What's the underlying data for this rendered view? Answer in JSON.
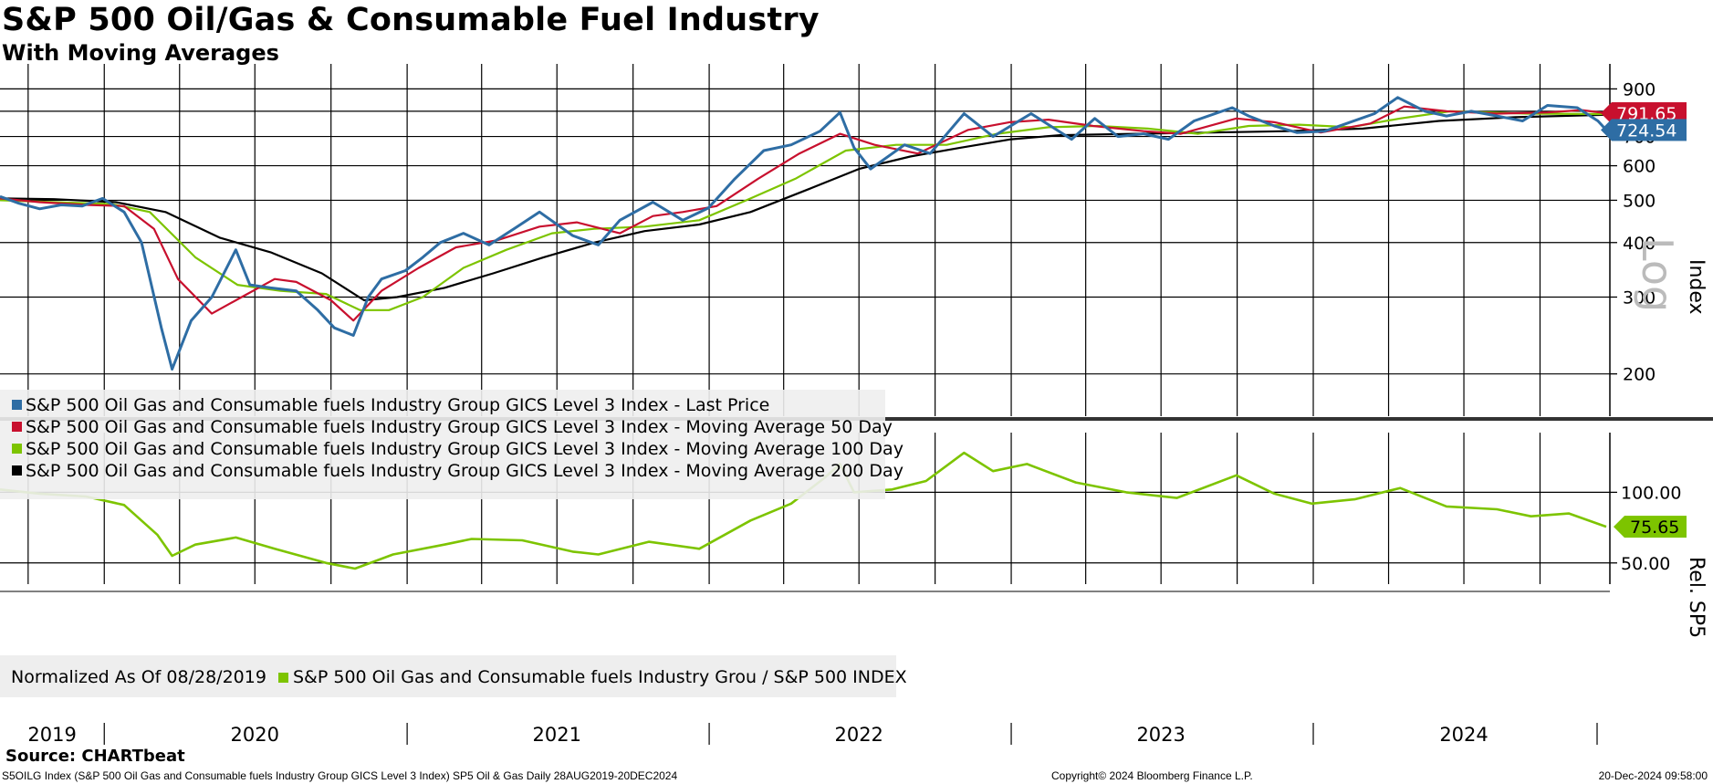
{
  "header": {
    "title": "S&P 500 Oil/Gas & Consumable Fuel Industry",
    "subtitle": "With Moving Averages"
  },
  "source": "Source: CHARTbeat",
  "footer": {
    "left": "S5OILG Index (S&P 500 Oil Gas and Consumable fuels Industry Group GICS Level 3 Index) SP5 Oil & Gas  Daily 28AUG2019-20DEC2024",
    "middle": "Copyright© 2024 Bloomberg Finance L.P.",
    "right": "20-Dec-2024 09:58:00"
  },
  "colors": {
    "last_price": "#2e6da4",
    "ma50": "#c8102e",
    "ma100": "#7dc400",
    "ma200": "#000000",
    "relative": "#7dc400",
    "grid": "#000000"
  },
  "chart_data": [
    {
      "type": "line",
      "panel": "price",
      "y_scale": "log",
      "y_scale_label": "Log",
      "ylabel": "Index",
      "ylim": [
        160,
        960
      ],
      "yticks": [
        200,
        300,
        400,
        500,
        600,
        700,
        800,
        900
      ],
      "x_range": [
        "2019-08-28",
        "2024-12-20"
      ],
      "x_tick_labels": [
        "2019",
        "2020",
        "2021",
        "2022",
        "2023",
        "2024"
      ],
      "grid": true,
      "legend_position": "bottom-left",
      "last_value_labels": [
        {
          "series": "Moving Average 50 Day",
          "value": "791.65"
        },
        {
          "series": "Last Price",
          "value": "724.54"
        }
      ],
      "series": [
        {
          "name": "S&P 500 Oil Gas and Consumable fuels Industry Group GICS Level 3 Index - Last Price",
          "points": [
            [
              "2019-08-28",
              510
            ],
            [
              "2019-09-20",
              492
            ],
            [
              "2019-10-15",
              478
            ],
            [
              "2019-11-10",
              488
            ],
            [
              "2019-12-05",
              485
            ],
            [
              "2019-12-30",
              505
            ],
            [
              "2020-01-25",
              470
            ],
            [
              "2020-02-15",
              400
            ],
            [
              "2020-03-10",
              255
            ],
            [
              "2020-03-23",
              205
            ],
            [
              "2020-04-15",
              265
            ],
            [
              "2020-05-10",
              300
            ],
            [
              "2020-06-08",
              385
            ],
            [
              "2020-06-25",
              320
            ],
            [
              "2020-07-20",
              315
            ],
            [
              "2020-08-20",
              310
            ],
            [
              "2020-09-15",
              280
            ],
            [
              "2020-10-05",
              255
            ],
            [
              "2020-10-28",
              245
            ],
            [
              "2020-11-15",
              300
            ],
            [
              "2020-12-01",
              330
            ],
            [
              "2020-12-30",
              345
            ],
            [
              "2021-01-20",
              370
            ],
            [
              "2021-02-10",
              400
            ],
            [
              "2021-03-10",
              420
            ],
            [
              "2021-04-10",
              395
            ],
            [
              "2021-05-10",
              430
            ],
            [
              "2021-06-10",
              470
            ],
            [
              "2021-07-20",
              415
            ],
            [
              "2021-08-20",
              395
            ],
            [
              "2021-09-15",
              450
            ],
            [
              "2021-10-25",
              495
            ],
            [
              "2021-11-30",
              450
            ],
            [
              "2021-12-31",
              480
            ],
            [
              "2022-02-01",
              560
            ],
            [
              "2022-03-08",
              650
            ],
            [
              "2022-04-10",
              670
            ],
            [
              "2022-05-15",
              720
            ],
            [
              "2022-06-08",
              795
            ],
            [
              "2022-06-25",
              660
            ],
            [
              "2022-07-15",
              590
            ],
            [
              "2022-08-25",
              670
            ],
            [
              "2022-09-25",
              640
            ],
            [
              "2022-11-05",
              790
            ],
            [
              "2022-12-10",
              700
            ],
            [
              "2023-01-25",
              790
            ],
            [
              "2023-03-15",
              690
            ],
            [
              "2023-04-12",
              770
            ],
            [
              "2023-05-10",
              700
            ],
            [
              "2023-06-10",
              710
            ],
            [
              "2023-07-10",
              690
            ],
            [
              "2023-08-10",
              760
            ],
            [
              "2023-09-25",
              815
            ],
            [
              "2023-10-15",
              780
            ],
            [
              "2023-11-15",
              740
            ],
            [
              "2023-12-12",
              715
            ],
            [
              "2024-01-15",
              720
            ],
            [
              "2024-03-15",
              790
            ],
            [
              "2024-04-12",
              860
            ],
            [
              "2024-05-15",
              800
            ],
            [
              "2024-06-10",
              780
            ],
            [
              "2024-07-10",
              800
            ],
            [
              "2024-08-10",
              780
            ],
            [
              "2024-09-10",
              760
            ],
            [
              "2024-10-10",
              825
            ],
            [
              "2024-11-15",
              815
            ],
            [
              "2024-12-10",
              760
            ],
            [
              "2024-12-20",
              724.54
            ]
          ]
        },
        {
          "name": "S&P 500 Oil Gas and Consumable fuels Industry Group GICS Level 3 Index - Moving Average 50 Day",
          "points": [
            [
              "2019-08-28",
              505
            ],
            [
              "2019-10-15",
              495
            ],
            [
              "2019-12-10",
              488
            ],
            [
              "2020-01-25",
              485
            ],
            [
              "2020-03-01",
              430
            ],
            [
              "2020-03-30",
              330
            ],
            [
              "2020-05-10",
              275
            ],
            [
              "2020-06-15",
              300
            ],
            [
              "2020-07-25",
              330
            ],
            [
              "2020-08-20",
              325
            ],
            [
              "2020-10-01",
              295
            ],
            [
              "2020-10-28",
              265
            ],
            [
              "2020-12-01",
              310
            ],
            [
              "2021-01-15",
              350
            ],
            [
              "2021-03-01",
              390
            ],
            [
              "2021-04-20",
              405
            ],
            [
              "2021-06-10",
              435
            ],
            [
              "2021-07-25",
              445
            ],
            [
              "2021-09-15",
              420
            ],
            [
              "2021-10-25",
              460
            ],
            [
              "2021-11-30",
              470
            ],
            [
              "2022-01-10",
              485
            ],
            [
              "2022-03-01",
              560
            ],
            [
              "2022-04-20",
              640
            ],
            [
              "2022-06-08",
              710
            ],
            [
              "2022-07-20",
              670
            ],
            [
              "2022-09-10",
              640
            ],
            [
              "2022-11-10",
              725
            ],
            [
              "2022-12-30",
              755
            ],
            [
              "2023-02-15",
              765
            ],
            [
              "2023-04-10",
              740
            ],
            [
              "2023-06-10",
              720
            ],
            [
              "2023-07-25",
              710
            ],
            [
              "2023-09-30",
              770
            ],
            [
              "2023-11-15",
              755
            ],
            [
              "2024-01-10",
              715
            ],
            [
              "2024-03-10",
              750
            ],
            [
              "2024-04-20",
              820
            ],
            [
              "2024-06-10",
              800
            ],
            [
              "2024-08-10",
              790
            ],
            [
              "2024-10-10",
              795
            ],
            [
              "2024-11-20",
              805
            ],
            [
              "2024-12-20",
              791.65
            ]
          ]
        },
        {
          "name": "S&P 500 Oil Gas and Consumable fuels Industry Group GICS Level 3 Index - Moving Average 100 Day",
          "points": [
            [
              "2019-08-28",
              500
            ],
            [
              "2019-11-01",
              495
            ],
            [
              "2020-01-10",
              490
            ],
            [
              "2020-02-25",
              470
            ],
            [
              "2020-04-20",
              370
            ],
            [
              "2020-06-10",
              320
            ],
            [
              "2020-08-01",
              310
            ],
            [
              "2020-09-25",
              305
            ],
            [
              "2020-11-05",
              280
            ],
            [
              "2020-12-10",
              280
            ],
            [
              "2021-01-20",
              300
            ],
            [
              "2021-03-10",
              350
            ],
            [
              "2021-05-01",
              385
            ],
            [
              "2021-06-25",
              420
            ],
            [
              "2021-08-15",
              430
            ],
            [
              "2021-10-15",
              435
            ],
            [
              "2021-12-20",
              450
            ],
            [
              "2022-02-15",
              500
            ],
            [
              "2022-04-15",
              560
            ],
            [
              "2022-06-15",
              650
            ],
            [
              "2022-08-15",
              670
            ],
            [
              "2022-10-15",
              670
            ],
            [
              "2022-12-15",
              710
            ],
            [
              "2023-02-15",
              735
            ],
            [
              "2023-04-15",
              740
            ],
            [
              "2023-06-15",
              730
            ],
            [
              "2023-08-15",
              710
            ],
            [
              "2023-10-15",
              740
            ],
            [
              "2023-12-15",
              745
            ],
            [
              "2024-02-15",
              735
            ],
            [
              "2024-04-15",
              770
            ],
            [
              "2024-06-15",
              800
            ],
            [
              "2024-09-15",
              790
            ],
            [
              "2024-12-20",
              788
            ]
          ]
        },
        {
          "name": "S&P 500 Oil Gas and Consumable fuels Industry Group GICS Level 3 Index - Moving Average 200 Day",
          "points": [
            [
              "2019-08-28",
              505
            ],
            [
              "2019-11-01",
              503
            ],
            [
              "2020-01-15",
              495
            ],
            [
              "2020-03-15",
              470
            ],
            [
              "2020-05-20",
              410
            ],
            [
              "2020-07-20",
              380
            ],
            [
              "2020-09-20",
              340
            ],
            [
              "2020-11-10",
              295
            ],
            [
              "2020-12-20",
              300
            ],
            [
              "2021-02-15",
              315
            ],
            [
              "2021-04-15",
              340
            ],
            [
              "2021-06-15",
              370
            ],
            [
              "2021-08-15",
              400
            ],
            [
              "2021-10-15",
              425
            ],
            [
              "2021-12-20",
              440
            ],
            [
              "2022-02-20",
              470
            ],
            [
              "2022-05-01",
              530
            ],
            [
              "2022-07-01",
              590
            ],
            [
              "2022-09-01",
              630
            ],
            [
              "2022-11-01",
              660
            ],
            [
              "2023-01-01",
              690
            ],
            [
              "2023-03-01",
              705
            ],
            [
              "2023-06-01",
              710
            ],
            [
              "2023-09-01",
              715
            ],
            [
              "2023-12-01",
              720
            ],
            [
              "2024-03-01",
              730
            ],
            [
              "2024-06-01",
              760
            ],
            [
              "2024-09-01",
              775
            ],
            [
              "2024-12-20",
              785
            ]
          ]
        }
      ]
    },
    {
      "type": "line",
      "panel": "relative",
      "ylabel": "Rel. SP5",
      "ylim": [
        35,
        150
      ],
      "yticks": [
        50,
        100
      ],
      "ytick_labels": [
        "50.00",
        "100.00"
      ],
      "x_range": [
        "2019-08-28",
        "2024-12-20"
      ],
      "grid": true,
      "legend_position": "bottom-left",
      "legend_note": "Normalized As Of 08/28/2019",
      "last_value_label": "75.65",
      "series": [
        {
          "name": "S&P 500 Oil Gas and Consumable fuels Industry Grou / S&P 500 INDEX",
          "points": [
            [
              "2019-08-28",
              102
            ],
            [
              "2019-10-15",
              99
            ],
            [
              "2019-12-10",
              97
            ],
            [
              "2020-01-25",
              91
            ],
            [
              "2020-03-05",
              70
            ],
            [
              "2020-03-23",
              55
            ],
            [
              "2020-04-20",
              63
            ],
            [
              "2020-06-08",
              68
            ],
            [
              "2020-07-25",
              60
            ],
            [
              "2020-09-25",
              50
            ],
            [
              "2020-10-30",
              46
            ],
            [
              "2020-12-15",
              56
            ],
            [
              "2021-02-15",
              63
            ],
            [
              "2021-03-20",
              67
            ],
            [
              "2021-05-20",
              66
            ],
            [
              "2021-07-20",
              58
            ],
            [
              "2021-08-20",
              56
            ],
            [
              "2021-10-20",
              65
            ],
            [
              "2021-12-20",
              60
            ],
            [
              "2022-02-20",
              80
            ],
            [
              "2022-04-10",
              92
            ],
            [
              "2022-05-20",
              110
            ],
            [
              "2022-06-08",
              120
            ],
            [
              "2022-06-25",
              100
            ],
            [
              "2022-08-10",
              102
            ],
            [
              "2022-09-20",
              108
            ],
            [
              "2022-11-05",
              128
            ],
            [
              "2022-12-10",
              115
            ],
            [
              "2023-01-20",
              120
            ],
            [
              "2023-03-20",
              107
            ],
            [
              "2023-05-20",
              100
            ],
            [
              "2023-07-20",
              96
            ],
            [
              "2023-09-30",
              112
            ],
            [
              "2023-11-15",
              99
            ],
            [
              "2023-12-30",
              92
            ],
            [
              "2024-02-20",
              95
            ],
            [
              "2024-04-15",
              103
            ],
            [
              "2024-06-10",
              90
            ],
            [
              "2024-08-10",
              88
            ],
            [
              "2024-09-20",
              83
            ],
            [
              "2024-11-05",
              85
            ],
            [
              "2024-12-20",
              75.65
            ]
          ]
        }
      ]
    }
  ]
}
